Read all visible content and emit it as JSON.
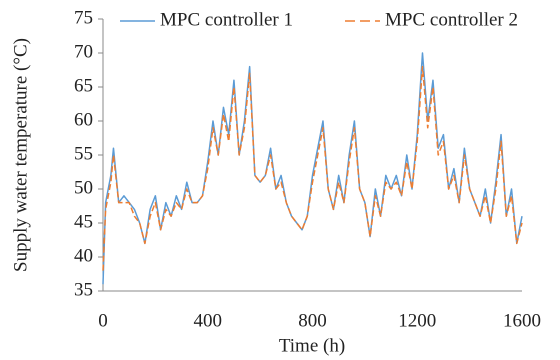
{
  "chart_data": {
    "type": "line",
    "x_label": "Time (h)",
    "y_label": "Supply water temperature (°C)",
    "x": [
      0,
      10,
      20,
      30,
      40,
      60,
      80,
      100,
      120,
      140,
      160,
      180,
      200,
      220,
      240,
      260,
      280,
      300,
      320,
      340,
      360,
      380,
      400,
      420,
      440,
      460,
      480,
      500,
      520,
      540,
      560,
      580,
      600,
      620,
      640,
      660,
      680,
      700,
      720,
      740,
      760,
      780,
      800,
      820,
      840,
      860,
      880,
      900,
      920,
      940,
      960,
      980,
      1000,
      1020,
      1040,
      1060,
      1080,
      1100,
      1120,
      1140,
      1160,
      1180,
      1200,
      1220,
      1240,
      1260,
      1280,
      1300,
      1320,
      1340,
      1360,
      1380,
      1400,
      1420,
      1440,
      1460,
      1480,
      1500,
      1520,
      1540,
      1560,
      1580,
      1600
    ],
    "series": [
      {
        "name": "MPC controller 1",
        "color": "#5b9bd5",
        "dash": false,
        "values": [
          36,
          48,
          50,
          52,
          56,
          48,
          49,
          48,
          47,
          45,
          42,
          47,
          49,
          44,
          48,
          46,
          49,
          47,
          51,
          48,
          48,
          49,
          54,
          60,
          55,
          62,
          58,
          66,
          55,
          60,
          68,
          52,
          51,
          52,
          56,
          50,
          52,
          48,
          46,
          45,
          44,
          46,
          52,
          56,
          60,
          50,
          47,
          52,
          48,
          55,
          60,
          50,
          48,
          43,
          50,
          46,
          52,
          50,
          52,
          49,
          55,
          50,
          58,
          70,
          60,
          66,
          56,
          58,
          50,
          53,
          48,
          56,
          50,
          48,
          46,
          50,
          45,
          51,
          58,
          46,
          50,
          42,
          46
        ]
      },
      {
        "name": "MPC controller 2",
        "color": "#ed7d31",
        "dash": true,
        "values": [
          38,
          47,
          49,
          51,
          55,
          48,
          48,
          48,
          46,
          45,
          42,
          46,
          48,
          44,
          47,
          46,
          48,
          47,
          50,
          48,
          48,
          49,
          53,
          59,
          55,
          61,
          57,
          65,
          55,
          59,
          67,
          52,
          51,
          52,
          55,
          50,
          51,
          48,
          46,
          45,
          44,
          46,
          51,
          55,
          59,
          50,
          47,
          51,
          48,
          54,
          59,
          50,
          48,
          43,
          49,
          46,
          51,
          50,
          51,
          49,
          54,
          50,
          57,
          68,
          59,
          65,
          55,
          57,
          50,
          52,
          48,
          55,
          50,
          48,
          46,
          49,
          45,
          50,
          57,
          46,
          49,
          42,
          45
        ]
      }
    ],
    "xlim": [
      0,
      1600
    ],
    "xticks": [
      0,
      400,
      800,
      1200,
      1600
    ],
    "ylim": [
      35,
      75
    ],
    "yticks": [
      35,
      40,
      45,
      50,
      55,
      60,
      65,
      70,
      75
    ],
    "grid": false,
    "legend": "top"
  }
}
